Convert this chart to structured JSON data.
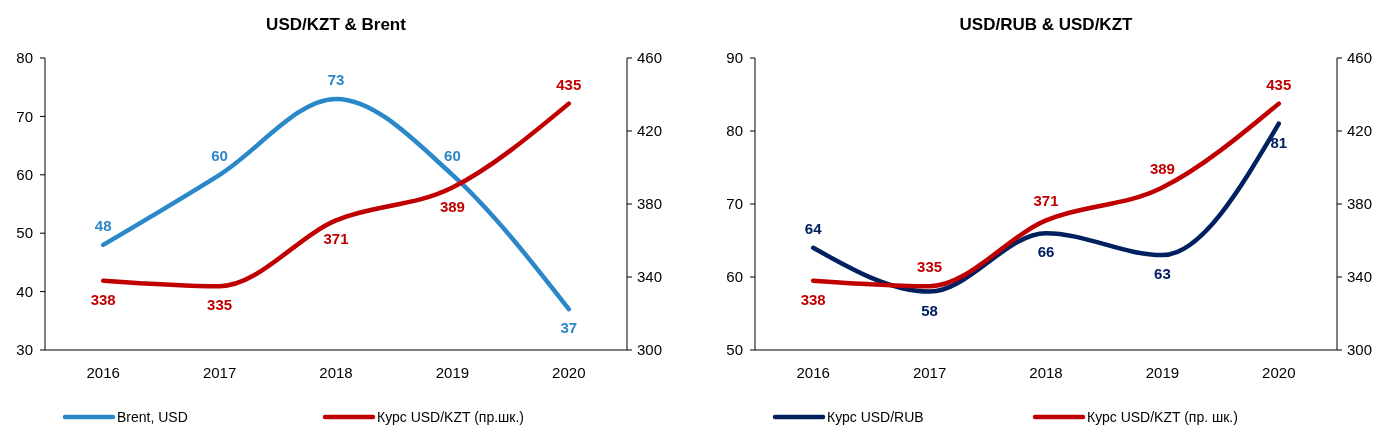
{
  "chart_data": [
    {
      "type": "line",
      "title": "USD/KZT & Brent",
      "categories": [
        "2016",
        "2017",
        "2018",
        "2019",
        "2020"
      ],
      "ylim": [
        30,
        80
      ],
      "yticks": [
        30,
        40,
        50,
        60,
        70,
        80
      ],
      "y2lim": [
        300,
        460
      ],
      "y2ticks": [
        300,
        340,
        380,
        420,
        460
      ],
      "data_labels": true,
      "legend": "bottom",
      "grid": false,
      "marker": "none",
      "line_style": "solid",
      "series": [
        {
          "name": "Brent, USD",
          "color": "#2a87c8",
          "values": [
            48,
            60,
            73,
            60,
            37
          ]
        },
        {
          "name": "Курс USD/KZT (пр.шк.)",
          "color": "#c00000",
          "values": [
            338,
            335,
            371,
            389,
            435
          ],
          "axis": "y2"
        }
      ]
    },
    {
      "type": "line",
      "title": "USD/RUB & USD/KZT",
      "categories": [
        "2016",
        "2017",
        "2018",
        "2019",
        "2020"
      ],
      "ylim": [
        50,
        90
      ],
      "yticks": [
        50,
        60,
        70,
        80,
        90
      ],
      "y2lim": [
        300,
        460
      ],
      "y2ticks": [
        300,
        340,
        380,
        420,
        460
      ],
      "data_labels": true,
      "legend": "bottom",
      "grid": false,
      "marker": "none",
      "line_style": "solid",
      "series": [
        {
          "name": "Курс USD/RUB",
          "color": "#002060",
          "values": [
            64,
            58,
            66,
            63,
            81
          ]
        },
        {
          "name": "Курс USD/KZT (пр. шк.)",
          "color": "#c00000",
          "values": [
            338,
            335,
            371,
            389,
            435
          ],
          "axis": "y2"
        }
      ]
    }
  ]
}
